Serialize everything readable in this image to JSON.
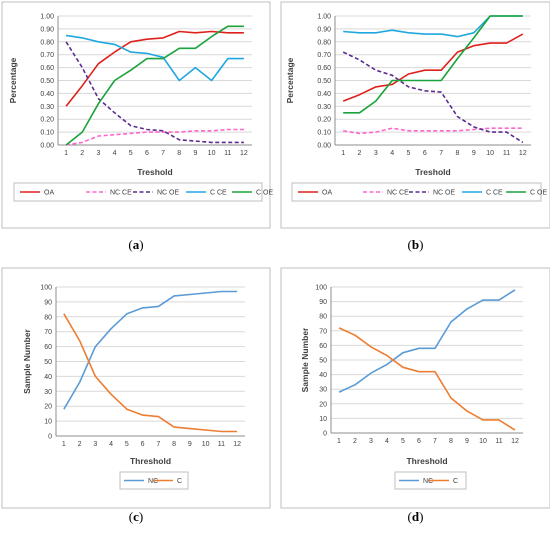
{
  "chart_data": [
    {
      "panel": "a",
      "caption_letter": "a",
      "type": "line",
      "xlabel": "Treshold",
      "ylabel": "Percentage",
      "ylim": [
        0,
        1
      ],
      "yticks": [
        0.0,
        0.1,
        0.2,
        0.3,
        0.4,
        0.5,
        0.6,
        0.7,
        0.8,
        0.9,
        1.0
      ],
      "ytick_labels": [
        "0.00",
        "0.10",
        "0.20",
        "0.30",
        "0.40",
        "0.50",
        "0.60",
        "0.70",
        "0.80",
        "0.90",
        "1.00"
      ],
      "x": [
        1,
        2,
        3,
        4,
        5,
        6,
        7,
        8,
        9,
        10,
        11,
        12
      ],
      "grid": true,
      "legend_position": "bottom",
      "series": [
        {
          "name": "OA",
          "color": "#e0201b",
          "dash": "solid",
          "values": [
            0.3,
            0.46,
            0.63,
            0.72,
            0.8,
            0.82,
            0.83,
            0.88,
            0.87,
            0.88,
            0.87,
            0.87
          ]
        },
        {
          "name": "NC CE",
          "color": "#ff66cc",
          "dash": "dashed",
          "values": [
            0.0,
            0.02,
            0.07,
            0.08,
            0.09,
            0.1,
            0.1,
            0.1,
            0.11,
            0.11,
            0.12,
            0.12
          ]
        },
        {
          "name": "NC OE",
          "color": "#5b2d91",
          "dash": "dashed",
          "values": [
            0.8,
            0.6,
            0.36,
            0.25,
            0.15,
            0.12,
            0.11,
            0.04,
            0.03,
            0.02,
            0.02,
            0.02
          ]
        },
        {
          "name": "C CE",
          "color": "#1fa8e0",
          "dash": "solid",
          "values": [
            0.85,
            0.83,
            0.8,
            0.78,
            0.72,
            0.71,
            0.68,
            0.5,
            0.6,
            0.5,
            0.67,
            0.67
          ]
        },
        {
          "name": "C OE",
          "color": "#1aa33a",
          "dash": "solid",
          "values": [
            0.0,
            0.1,
            0.32,
            0.5,
            0.58,
            0.67,
            0.67,
            0.75,
            0.75,
            0.84,
            0.92,
            0.92
          ]
        }
      ]
    },
    {
      "panel": "b",
      "caption_letter": "b",
      "type": "line",
      "xlabel": "Treshold",
      "ylabel": "Percentage",
      "ylim": [
        0,
        1
      ],
      "yticks": [
        0.0,
        0.1,
        0.2,
        0.3,
        0.4,
        0.5,
        0.6,
        0.7,
        0.8,
        0.9,
        1.0
      ],
      "ytick_labels": [
        "0.00",
        "0.10",
        "0.20",
        "0.30",
        "0.40",
        "0.50",
        "0.60",
        "0.70",
        "0.80",
        "0.90",
        "1.00"
      ],
      "x": [
        1,
        2,
        3,
        4,
        5,
        6,
        7,
        8,
        9,
        10,
        11,
        12
      ],
      "grid": true,
      "legend_position": "bottom",
      "series": [
        {
          "name": "OA",
          "color": "#e0201b",
          "dash": "solid",
          "values": [
            0.34,
            0.39,
            0.45,
            0.47,
            0.55,
            0.58,
            0.58,
            0.72,
            0.77,
            0.79,
            0.79,
            0.86
          ]
        },
        {
          "name": "NC CE",
          "color": "#ff66cc",
          "dash": "dashed",
          "values": [
            0.11,
            0.09,
            0.1,
            0.13,
            0.11,
            0.11,
            0.11,
            0.11,
            0.12,
            0.13,
            0.13,
            0.13
          ]
        },
        {
          "name": "NC OE",
          "color": "#5b2d91",
          "dash": "dashed",
          "values": [
            0.72,
            0.66,
            0.58,
            0.54,
            0.45,
            0.42,
            0.41,
            0.22,
            0.14,
            0.1,
            0.1,
            0.02
          ]
        },
        {
          "name": "C CE",
          "color": "#1fa8e0",
          "dash": "solid",
          "values": [
            0.88,
            0.87,
            0.87,
            0.89,
            0.87,
            0.86,
            0.86,
            0.84,
            0.87,
            1.0,
            1.0,
            1.0
          ]
        },
        {
          "name": "C OE",
          "color": "#1aa33a",
          "dash": "solid",
          "values": [
            0.25,
            0.25,
            0.34,
            0.5,
            0.5,
            0.5,
            0.5,
            0.67,
            0.83,
            1.0,
            1.0,
            1.0
          ]
        }
      ]
    },
    {
      "panel": "c",
      "caption_letter": "c",
      "type": "line",
      "xlabel": "Threshold",
      "ylabel": "Sample Number",
      "ylim": [
        0,
        100
      ],
      "yticks": [
        0,
        10,
        20,
        30,
        40,
        50,
        60,
        70,
        80,
        90,
        100
      ],
      "ytick_labels": [
        "0",
        "10",
        "20",
        "30",
        "40",
        "50",
        "60",
        "70",
        "80",
        "90",
        "100"
      ],
      "x": [
        1,
        2,
        3,
        4,
        5,
        6,
        7,
        8,
        9,
        10,
        11,
        12
      ],
      "grid": true,
      "legend_position": "bottom",
      "series": [
        {
          "name": "NC",
          "color": "#5b9bd5",
          "dash": "solid",
          "values": [
            18,
            36,
            60,
            72,
            82,
            86,
            87,
            94,
            95,
            96,
            97,
            97
          ]
        },
        {
          "name": "C",
          "color": "#ed7d31",
          "dash": "solid",
          "values": [
            82,
            64,
            40,
            28,
            18,
            14,
            13,
            6,
            5,
            4,
            3,
            3
          ]
        }
      ]
    },
    {
      "panel": "d",
      "caption_letter": "d",
      "type": "line",
      "xlabel": "Threshold",
      "ylabel": "Sample Number",
      "ylim": [
        0,
        100
      ],
      "yticks": [
        0,
        10,
        20,
        30,
        40,
        50,
        60,
        70,
        80,
        90,
        100
      ],
      "ytick_labels": [
        "0",
        "10",
        "20",
        "30",
        "40",
        "50",
        "60",
        "70",
        "80",
        "90",
        "100"
      ],
      "x": [
        1,
        2,
        3,
        4,
        5,
        6,
        7,
        8,
        9,
        10,
        11,
        12
      ],
      "grid": true,
      "legend_position": "bottom",
      "series": [
        {
          "name": "NC",
          "color": "#5b9bd5",
          "dash": "solid",
          "values": [
            28,
            33,
            41,
            47,
            55,
            58,
            58,
            76,
            85,
            91,
            91,
            98
          ]
        },
        {
          "name": "C",
          "color": "#ed7d31",
          "dash": "solid",
          "values": [
            72,
            67,
            59,
            53,
            45,
            42,
            42,
            24,
            15,
            9,
            9,
            2
          ]
        }
      ]
    }
  ]
}
